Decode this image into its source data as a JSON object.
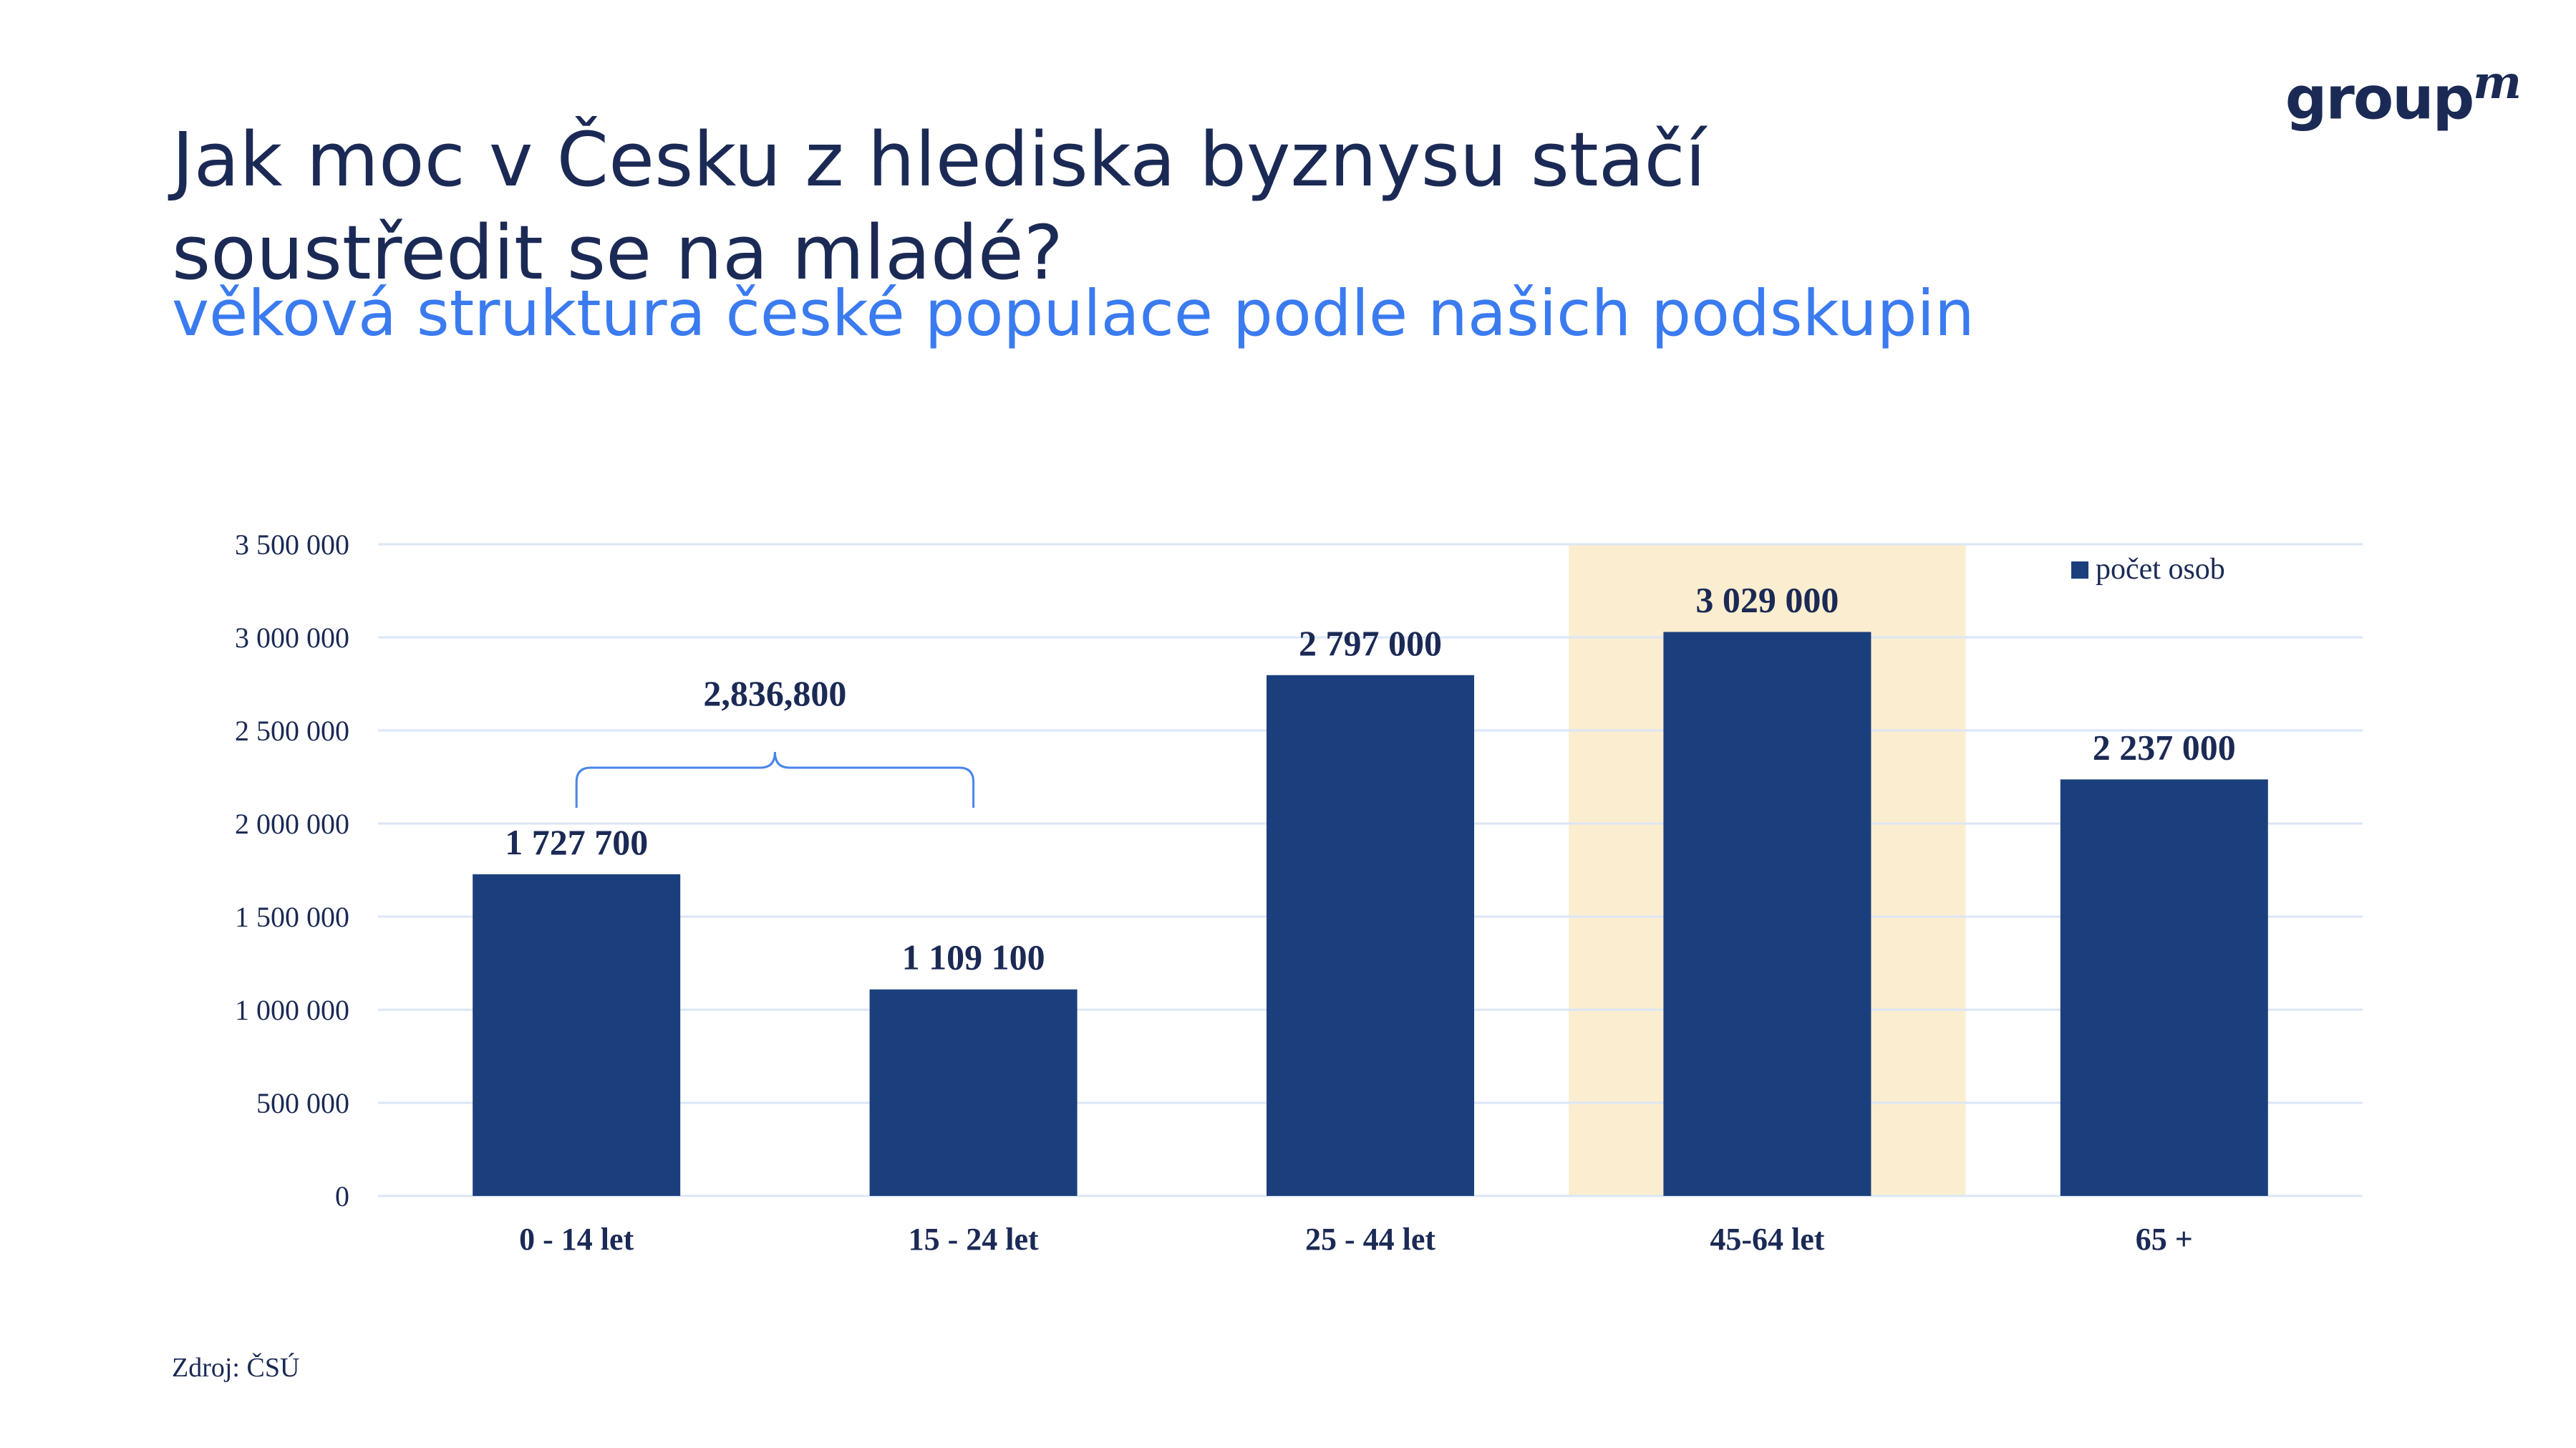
{
  "header": {
    "title_line1": "Jak moc v Česku z hlediska byznysu stačí",
    "title_line2": "soustředit se na mladé?",
    "subtitle": "věková struktura české populace podle našich podskupin",
    "logo_text": "group",
    "logo_sup": "m"
  },
  "footer": {
    "source": "Zdroj: ČSÚ"
  },
  "colors": {
    "bar": "#1b3f7c",
    "highlight": "#fbedcf",
    "grid": "#dbe6f6",
    "title": "#1b2a55",
    "subtitle": "#3b7bf0",
    "bracket": "#4a86e8"
  },
  "chart_data": {
    "type": "bar",
    "categories": [
      "0 - 14 let",
      "15 - 24 let",
      "25 - 44 let",
      "45-64 let",
      "65 +"
    ],
    "series": [
      {
        "name": "počet osob",
        "values": [
          1727700,
          1109100,
          2797000,
          3029000,
          2237000
        ]
      }
    ],
    "value_labels": [
      "1 727 700",
      "1 109 100",
      "2 797 000",
      "3 029 000",
      "2 237 000"
    ],
    "ylim": [
      0,
      3500000
    ],
    "yticks": [
      0,
      500000,
      1000000,
      1500000,
      2000000,
      2500000,
      3000000,
      3500000
    ],
    "ytick_labels": [
      "0",
      "500 000",
      "1 000 000",
      "1 500 000",
      "2 000 000",
      "2 500 000",
      "3 000 000",
      "3 500 000"
    ],
    "grid": true,
    "legend_position": "top-right",
    "highlighted_category": "45-64 let",
    "annotation": {
      "text": "2,836,800",
      "spans": [
        "0 - 14 let",
        "15 - 24 let"
      ]
    }
  }
}
